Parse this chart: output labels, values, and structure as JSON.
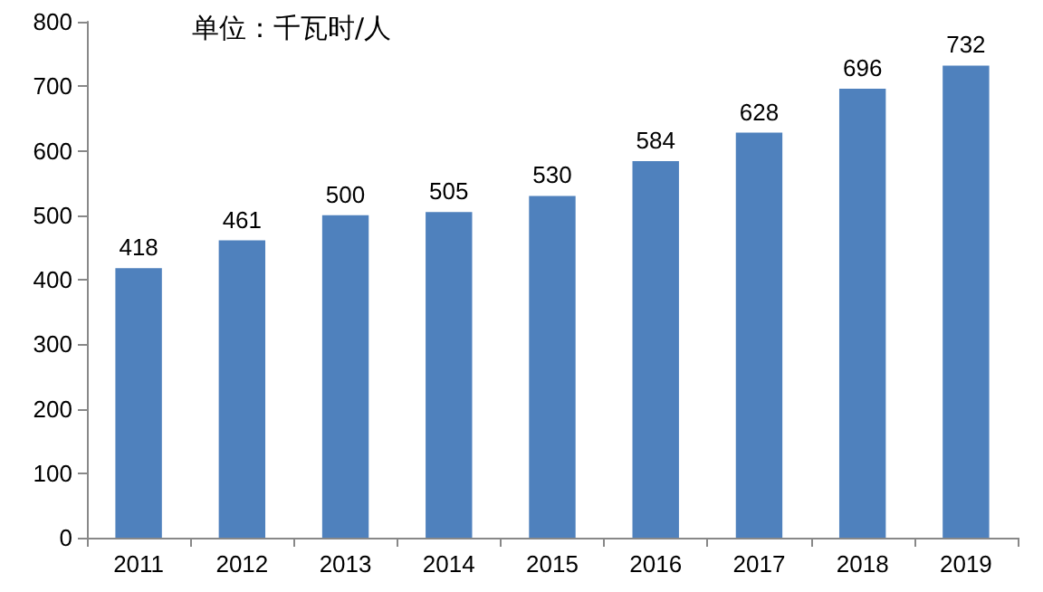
{
  "chart_data": {
    "type": "bar",
    "categories": [
      "2011",
      "2012",
      "2013",
      "2014",
      "2015",
      "2016",
      "2017",
      "2018",
      "2019"
    ],
    "values": [
      418,
      461,
      500,
      505,
      530,
      584,
      628,
      696,
      732
    ],
    "color": "#4f81bd",
    "ylim": [
      0,
      800
    ],
    "yticks": [
      0,
      100,
      200,
      300,
      400,
      500,
      600,
      700,
      800
    ],
    "data_labels": true,
    "annotations": [
      "单位：千瓦时/人"
    ]
  }
}
